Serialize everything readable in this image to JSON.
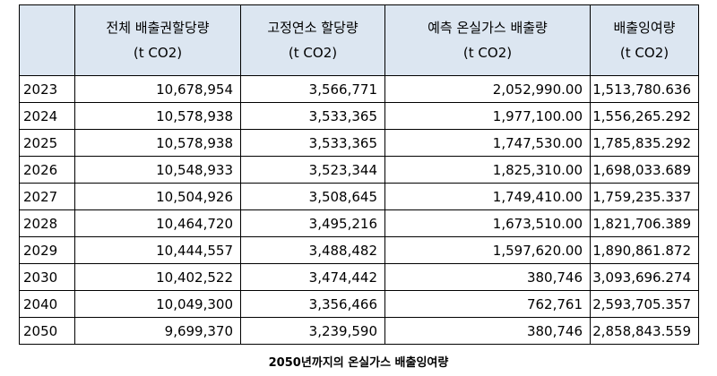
{
  "table": {
    "headers": [
      {
        "line1": "",
        "line2": ""
      },
      {
        "line1": "전체 배출권할당량",
        "line2": "(t CO2)"
      },
      {
        "line1": "고정연소 할당량",
        "line2": "(t CO2)"
      },
      {
        "line1": "예측 온실가스 배출량",
        "line2": "(t CO2)"
      },
      {
        "line1": "배출잉여량",
        "line2": "(t CO2)"
      }
    ],
    "rows": [
      [
        "2023",
        "10,678,954",
        "3,566,771",
        "2,052,990.00",
        "1,513,780.636"
      ],
      [
        "2024",
        "10,578,938",
        "3,533,365",
        "1,977,100.00",
        "1,556,265.292"
      ],
      [
        "2025",
        "10,578,938",
        "3,533,365",
        "1,747,530.00",
        "1,785,835.292"
      ],
      [
        "2026",
        "10,548,933",
        "3,523,344",
        "1,825,310.00",
        "1,698,033.689"
      ],
      [
        "2027",
        "10,504,926",
        "3,508,645",
        "1,749,410.00",
        "1,759,235.337"
      ],
      [
        "2028",
        "10,464,720",
        "3,495,216",
        "1,673,510.00",
        "1,821,706.389"
      ],
      [
        "2029",
        "10,444,557",
        "3,488,482",
        "1,597,620.00",
        "1,890,861.872"
      ],
      [
        "2030",
        "10,402,522",
        "3,474,442",
        "380,746",
        "3,093,696.274"
      ],
      [
        "2040",
        "10,049,300",
        "3,356,466",
        "762,761",
        "2,593,705.357"
      ],
      [
        "2050",
        "9,699,370",
        "3,239,590",
        "380,746",
        "2,858,843.559"
      ]
    ]
  },
  "caption": "2050년까지의 온실가스 배출잉여량",
  "colors": {
    "header_bg": "#dce6f1",
    "border": "#000000"
  }
}
